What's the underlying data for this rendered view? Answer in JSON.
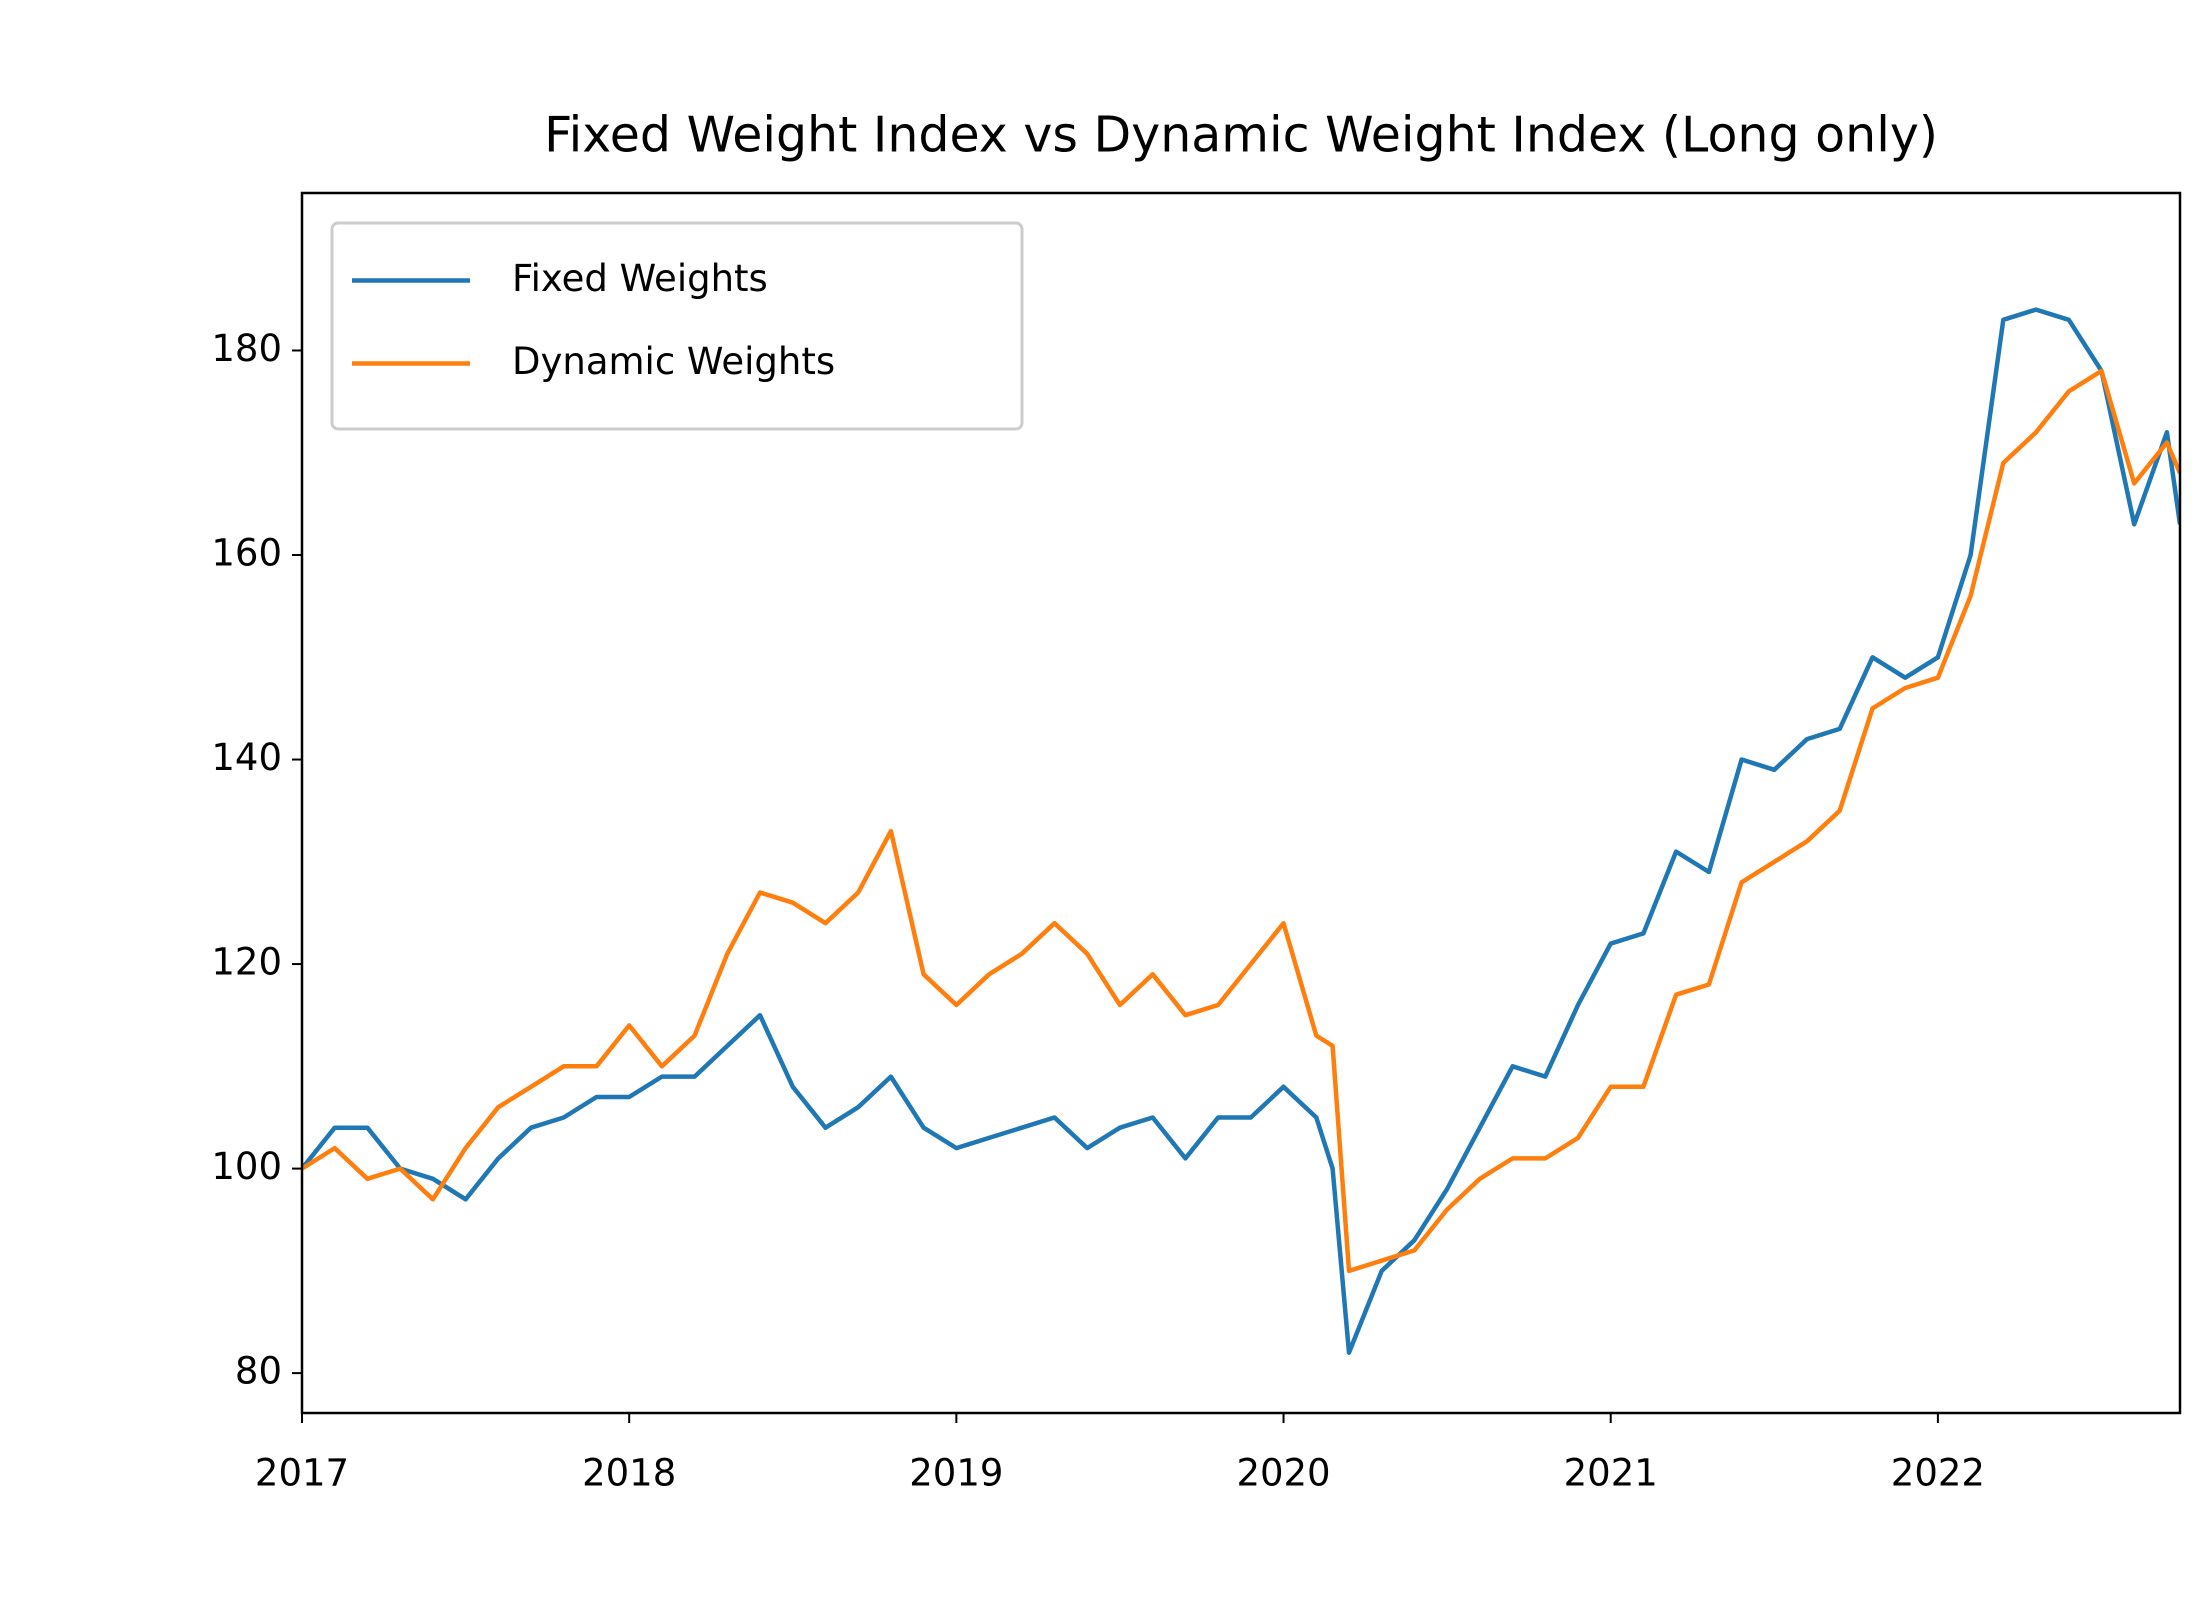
{
  "chart_data": {
    "type": "line",
    "title": "Fixed Weight Index vs Dynamic Weight Index (Long only)",
    "x": [
      2017.0,
      2017.1,
      2017.2,
      2017.3,
      2017.4,
      2017.5,
      2017.6,
      2017.7,
      2017.8,
      2017.9,
      2018.0,
      2018.1,
      2018.2,
      2018.3,
      2018.4,
      2018.5,
      2018.6,
      2018.7,
      2018.8,
      2018.9,
      2019.0,
      2019.1,
      2019.2,
      2019.3,
      2019.4,
      2019.5,
      2019.6,
      2019.7,
      2019.8,
      2019.9,
      2020.0,
      2020.1,
      2020.15,
      2020.2,
      2020.3,
      2020.4,
      2020.5,
      2020.6,
      2020.7,
      2020.8,
      2020.9,
      2021.0,
      2021.1,
      2021.2,
      2021.3,
      2021.4,
      2021.5,
      2021.6,
      2021.7,
      2021.8,
      2021.9,
      2022.0,
      2022.1,
      2022.2,
      2022.3,
      2022.4,
      2022.5,
      2022.6,
      2022.7,
      2022.74
    ],
    "series": [
      {
        "name": "Fixed Weights",
        "color": "#1f77b4",
        "values": [
          100,
          104,
          104,
          100,
          99,
          97,
          101,
          104,
          105,
          107,
          107,
          109,
          109,
          112,
          115,
          108,
          104,
          106,
          109,
          104,
          102,
          103,
          104,
          105,
          102,
          104,
          105,
          101,
          105,
          105,
          108,
          105,
          100,
          82,
          90,
          93,
          98,
          104,
          110,
          109,
          116,
          122,
          123,
          131,
          129,
          140,
          139,
          142,
          143,
          150,
          148,
          150,
          160,
          183,
          184,
          183,
          178,
          163,
          172,
          163
        ]
      },
      {
        "name": "Dynamic Weights",
        "color": "#ff7f0e",
        "values": [
          100,
          102,
          99,
          100,
          97,
          102,
          106,
          108,
          110,
          110,
          114,
          110,
          113,
          121,
          127,
          126,
          124,
          127,
          133,
          119,
          116,
          119,
          121,
          124,
          121,
          116,
          119,
          115,
          116,
          120,
          124,
          113,
          112,
          90,
          91,
          92,
          96,
          99,
          101,
          101,
          103,
          108,
          108,
          117,
          118,
          128,
          130,
          132,
          135,
          145,
          147,
          148,
          156,
          169,
          172,
          176,
          178,
          167,
          171,
          168
        ]
      }
    ],
    "xlim": [
      2017,
      2022.74
    ],
    "xticks": [
      2017,
      2018,
      2019,
      2020,
      2021,
      2022
    ],
    "ylim": [
      76.1,
      195.4
    ],
    "yticks": [
      80,
      100,
      120,
      140,
      160,
      180
    ],
    "legend": "upper left",
    "grid": false
  }
}
